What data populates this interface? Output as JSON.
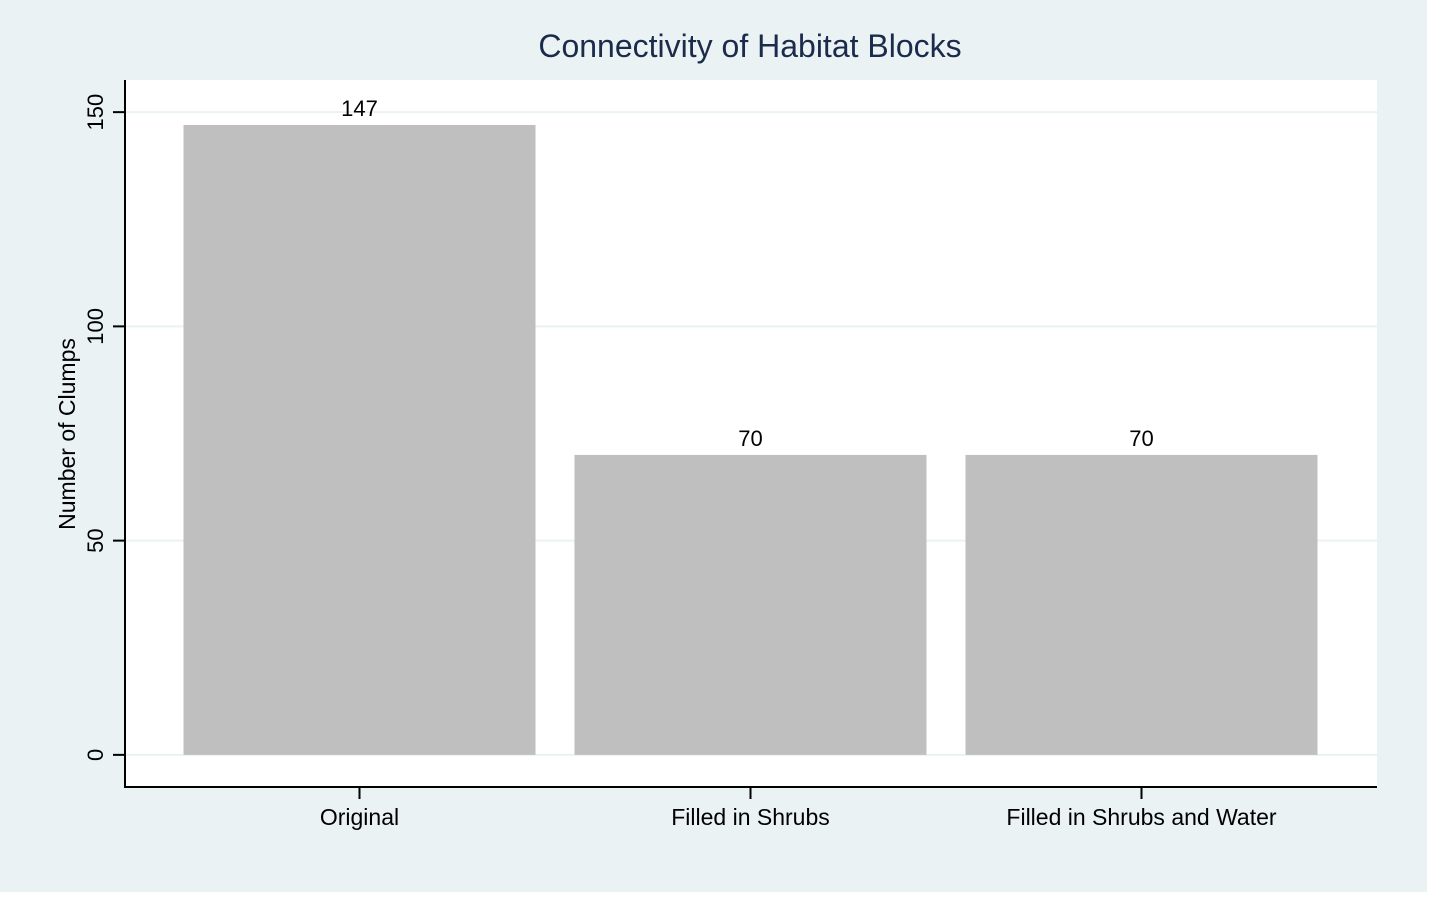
{
  "chart_data": {
    "type": "bar",
    "title": "Connectivity of Habitat Blocks",
    "xlabel": "",
    "ylabel": "Number of Clumps",
    "categories": [
      "Original",
      "Filled in Shrubs",
      "Filled in Shrubs and Water"
    ],
    "values": [
      147,
      70,
      70
    ],
    "data_labels": [
      "147",
      "70",
      "70"
    ],
    "yticks": [
      0,
      50,
      100,
      150
    ],
    "ytick_labels": [
      "0",
      "50",
      "100",
      "150"
    ],
    "ylim": [
      -7.5,
      157.5
    ],
    "grid": true,
    "legend": "none",
    "colors": {
      "outer_background": "#eaf2f3",
      "plot_background": "#ffffff",
      "bar_fill": "#bfbfbf",
      "grid": "#eaf2f3",
      "axis": "#000000",
      "title": "#1a2b4c",
      "text": "#000000"
    }
  }
}
